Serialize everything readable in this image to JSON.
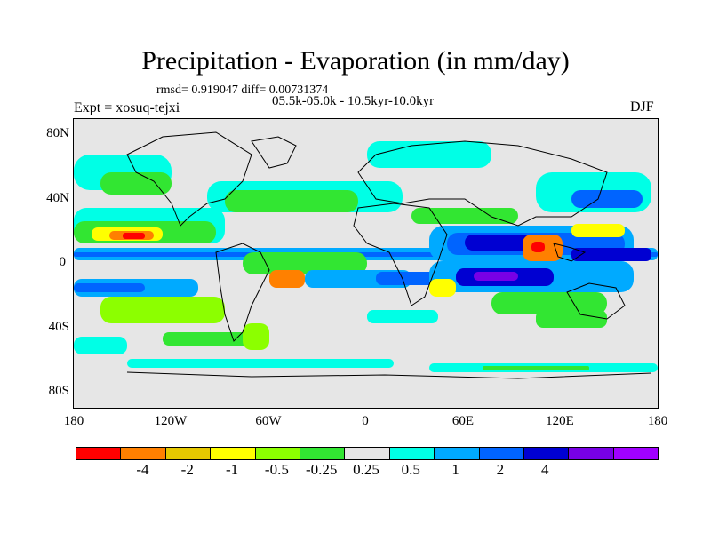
{
  "title": "Precipitation - Evaporation (in mm/day)",
  "stats": "rmsd= 0.919047 diff= 0.00731374",
  "period": "05.5k-05.0k - 10.5kyr-10.0kyr",
  "experiment": "Expt = xosuq-tejxi",
  "season": "DJF",
  "y_ticks": [
    "80N",
    "40N",
    "0",
    "40S",
    "80S"
  ],
  "x_ticks": [
    "180",
    "120W",
    "60W",
    "0",
    "60E",
    "120E",
    "180"
  ],
  "colorbar": {
    "colors": [
      "#ff0000",
      "#ff8000",
      "#e6c800",
      "#ffff00",
      "#8cff00",
      "#32e632",
      "#e6e6e6",
      "#00ffe6",
      "#00aaff",
      "#0064ff",
      "#0000d2",
      "#7800e6",
      "#a000ff"
    ],
    "labels": [
      "-4",
      "-2",
      "-1",
      "-0.5",
      "-0.25",
      "0.25",
      "0.5",
      "1",
      "2",
      "4"
    ]
  },
  "palette": {
    "neutral": "#e6e6e6",
    "green_light": "#8cff00",
    "green": "#32e632",
    "cyan": "#00ffe6",
    "sky": "#00aaff",
    "blue": "#0064ff",
    "navy": "#0000d2",
    "purple": "#7800e6",
    "red": "#ff0000",
    "orange": "#ff8000",
    "yellow": "#ffff00"
  }
}
